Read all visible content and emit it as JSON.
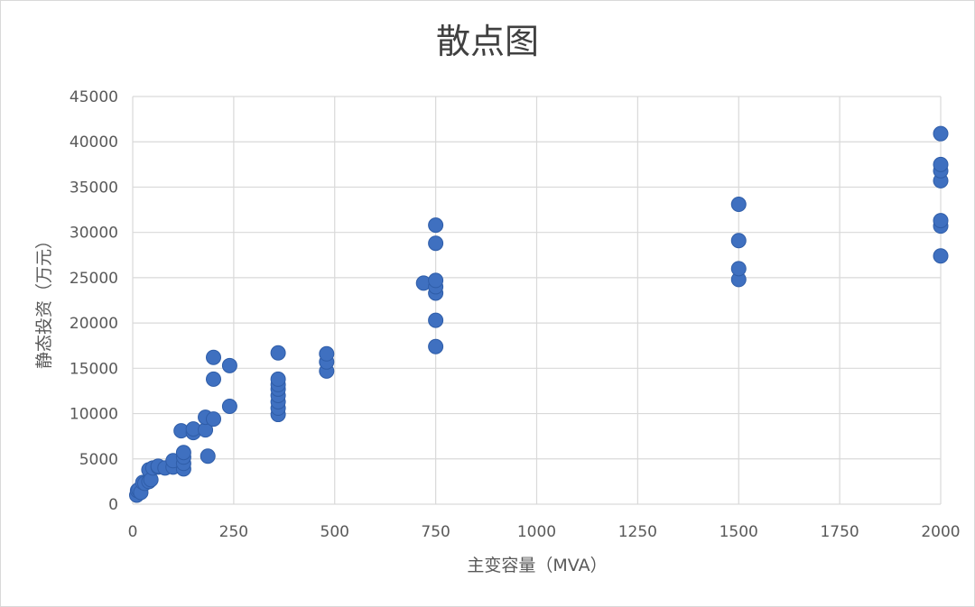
{
  "chart_data": {
    "type": "scatter",
    "title": "散点图",
    "xlabel": "主变容量（MVA）",
    "ylabel": "静态投资（万元）",
    "xlim": [
      0,
      2000
    ],
    "ylim": [
      0,
      45000
    ],
    "xticks": [
      0,
      250,
      500,
      750,
      1000,
      1250,
      1500,
      1750,
      2000
    ],
    "yticks": [
      0,
      5000,
      10000,
      15000,
      20000,
      25000,
      30000,
      35000,
      40000,
      45000
    ],
    "grid": true,
    "legend": "none",
    "marker_color": "#3f70c0",
    "marker_edge_color": "#2f5da8",
    "grid_color": "#d9d9d9",
    "series": [
      {
        "points": [
          [
            10,
            1000
          ],
          [
            12,
            1500
          ],
          [
            15,
            1600
          ],
          [
            20,
            1300
          ],
          [
            25,
            2400
          ],
          [
            30,
            2300
          ],
          [
            40,
            2500
          ],
          [
            40,
            3800
          ],
          [
            45,
            2700
          ],
          [
            50,
            4000
          ],
          [
            63,
            4100
          ],
          [
            63,
            4200
          ],
          [
            80,
            4000
          ],
          [
            100,
            4100
          ],
          [
            100,
            4800
          ],
          [
            120,
            8100
          ],
          [
            126,
            3900
          ],
          [
            126,
            4500
          ],
          [
            126,
            5200
          ],
          [
            126,
            5700
          ],
          [
            150,
            7900
          ],
          [
            150,
            8300
          ],
          [
            180,
            8200
          ],
          [
            180,
            9600
          ],
          [
            186,
            5300
          ],
          [
            200,
            9400
          ],
          [
            200,
            13800
          ],
          [
            200,
            16200
          ],
          [
            240,
            10800
          ],
          [
            240,
            15300
          ],
          [
            360,
            9900
          ],
          [
            360,
            10600
          ],
          [
            360,
            11300
          ],
          [
            360,
            12000
          ],
          [
            360,
            12700
          ],
          [
            360,
            13200
          ],
          [
            360,
            13800
          ],
          [
            360,
            16700
          ],
          [
            480,
            14700
          ],
          [
            480,
            15700
          ],
          [
            480,
            16600
          ],
          [
            720,
            24400
          ],
          [
            750,
            17400
          ],
          [
            750,
            20300
          ],
          [
            750,
            23300
          ],
          [
            750,
            24000
          ],
          [
            750,
            24700
          ],
          [
            750,
            28800
          ],
          [
            750,
            30800
          ],
          [
            1500,
            24800
          ],
          [
            1500,
            26000
          ],
          [
            1500,
            29100
          ],
          [
            1500,
            33100
          ],
          [
            2000,
            27400
          ],
          [
            2000,
            30700
          ],
          [
            2000,
            31300
          ],
          [
            2000,
            35700
          ],
          [
            2000,
            36800
          ],
          [
            2000,
            37500
          ],
          [
            2000,
            40900
          ]
        ]
      }
    ]
  }
}
